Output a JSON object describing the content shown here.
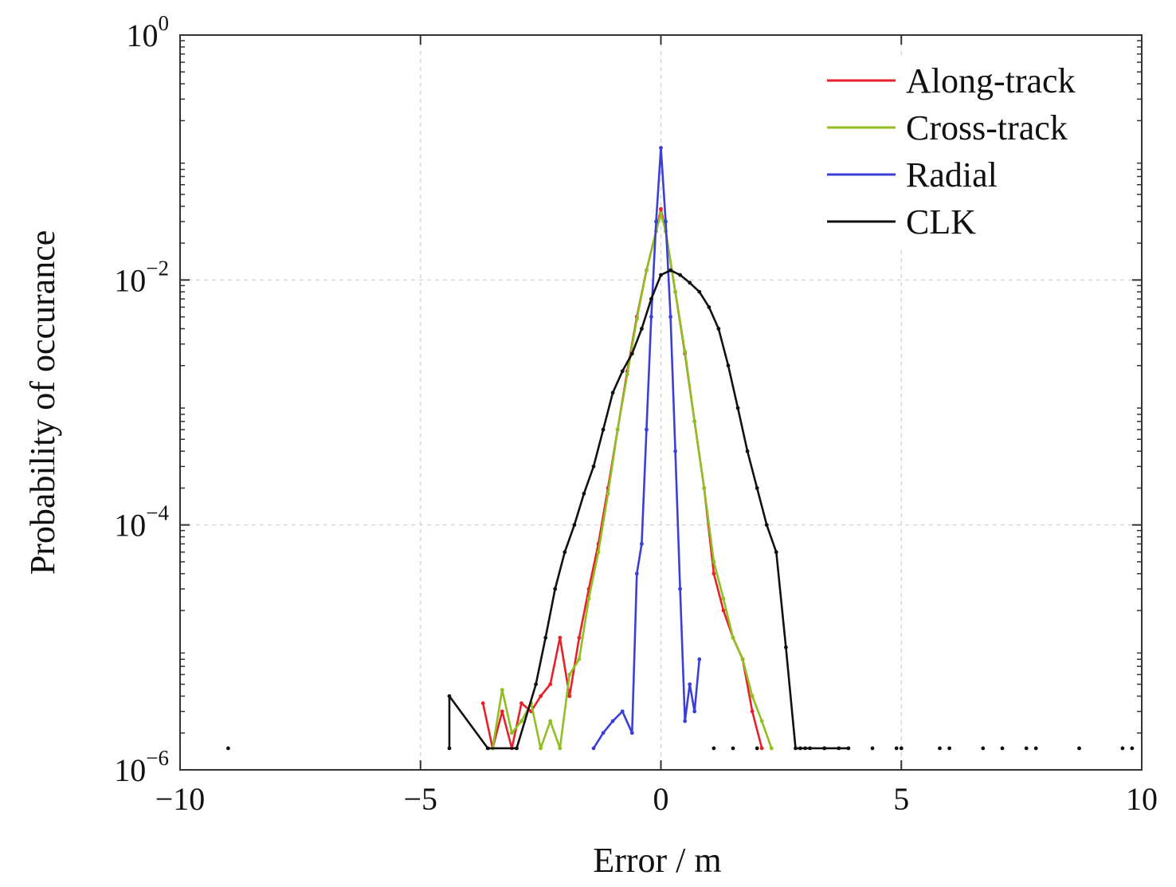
{
  "chart_data": {
    "type": "line",
    "xlabel": "Error / m",
    "ylabel": "Probability of occurance",
    "xlim": [
      -10,
      10
    ],
    "ylim_log10": [
      -6,
      0
    ],
    "yscale": "log",
    "grid": true,
    "legend_position": "top-right",
    "x_ticks": [
      {
        "value": -10,
        "label": "−10"
      },
      {
        "value": -5,
        "label": "−5"
      },
      {
        "value": 0,
        "label": "0"
      },
      {
        "value": 5,
        "label": "5"
      },
      {
        "value": 10,
        "label": "10"
      }
    ],
    "y_ticks": [
      {
        "exp": 0,
        "base": "10",
        "sup": "0"
      },
      {
        "exp": -2,
        "base": "10",
        "sup": "−2"
      },
      {
        "exp": -4,
        "base": "10",
        "sup": "−4"
      },
      {
        "exp": -6,
        "base": "10",
        "sup": "−6"
      }
    ],
    "series": [
      {
        "name": "Along-track",
        "color": "#e8202a",
        "x": [
          -3.7,
          -3.5,
          -3.3,
          -3.1,
          -2.9,
          -2.7,
          -2.5,
          -2.3,
          -2.1,
          -1.9,
          -1.7,
          -1.5,
          -1.3,
          -1.1,
          -0.9,
          -0.7,
          -0.5,
          -0.3,
          -0.1,
          0.0,
          0.1,
          0.3,
          0.5,
          0.7,
          0.9,
          1.1,
          1.3,
          1.5,
          1.7,
          1.9,
          2.1
        ],
        "y": [
          3.5e-06,
          1.5e-06,
          3e-06,
          1.5e-06,
          3.5e-06,
          3e-06,
          4e-06,
          5e-06,
          1.2e-05,
          4e-06,
          1.2e-05,
          3e-05,
          7e-05,
          0.0002,
          0.0006,
          0.0018,
          0.005,
          0.012,
          0.025,
          0.038,
          0.025,
          0.008,
          0.0025,
          0.0007,
          0.0002,
          4e-05,
          2e-05,
          1.2e-05,
          8e-06,
          3e-06,
          1.5e-06
        ]
      },
      {
        "name": "Cross-track",
        "color": "#8fbf20",
        "x": [
          -3.5,
          -3.3,
          -3.1,
          -2.9,
          -2.7,
          -2.5,
          -2.3,
          -2.1,
          -1.9,
          -1.7,
          -1.5,
          -1.3,
          -1.1,
          -0.9,
          -0.7,
          -0.5,
          -0.3,
          -0.1,
          0.0,
          0.1,
          0.3,
          0.5,
          0.7,
          0.9,
          1.1,
          1.3,
          1.5,
          1.7,
          1.9,
          2.1,
          2.3
        ],
        "y": [
          1.5e-06,
          4.5e-06,
          2e-06,
          2.5e-06,
          3.5e-06,
          1.5e-06,
          2.5e-06,
          1.5e-06,
          6e-06,
          8e-06,
          2.5e-05,
          6e-05,
          0.00018,
          0.0006,
          0.0017,
          0.0048,
          0.012,
          0.025,
          0.035,
          0.025,
          0.008,
          0.0026,
          0.0007,
          0.0002,
          5e-05,
          2.5e-05,
          1.2e-05,
          8e-06,
          4e-06,
          2.5e-06,
          1.5e-06
        ]
      },
      {
        "name": "Radial",
        "color": "#3b3fd6",
        "x": [
          -1.4,
          -1.2,
          -1.0,
          -0.8,
          -0.6,
          -0.5,
          -0.4,
          -0.3,
          -0.2,
          -0.1,
          0.0,
          0.1,
          0.2,
          0.3,
          0.4,
          0.5,
          0.6,
          0.7,
          0.8
        ],
        "y": [
          1.5e-06,
          2e-06,
          2.5e-06,
          3e-06,
          2e-06,
          4e-05,
          7e-05,
          0.0006,
          0.005,
          0.03,
          0.12,
          0.03,
          0.005,
          0.0004,
          3e-05,
          2.5e-06,
          5e-06,
          3e-06,
          8e-06
        ]
      },
      {
        "name": "CLK",
        "color": "#111111",
        "x": [
          -4.4,
          -4.4,
          -3.6,
          -3.0,
          -2.6,
          -2.4,
          -2.2,
          -2.0,
          -1.8,
          -1.6,
          -1.4,
          -1.2,
          -1.0,
          -0.8,
          -0.6,
          -0.4,
          -0.2,
          0.0,
          0.2,
          0.4,
          0.6,
          0.8,
          1.0,
          1.2,
          1.4,
          1.6,
          1.8,
          2.0,
          2.2,
          2.4,
          2.6,
          2.8,
          3.0,
          3.4,
          3.9
        ],
        "y": [
          1.5e-06,
          4e-06,
          1.5e-06,
          1.5e-06,
          5e-06,
          1.2e-05,
          3e-05,
          6e-05,
          0.0001,
          0.00018,
          0.0003,
          0.0006,
          0.0012,
          0.0018,
          0.0025,
          0.004,
          0.007,
          0.011,
          0.012,
          0.011,
          0.0095,
          0.008,
          0.006,
          0.004,
          0.002,
          0.0009,
          0.0004,
          0.0002,
          0.0001,
          6e-05,
          1e-05,
          1.5e-06,
          1.5e-06,
          1.5e-06,
          1.5e-06
        ]
      }
    ],
    "clk_isolated_points": {
      "x": [
        -9.0,
        1.1,
        1.5,
        2.0,
        2.9,
        3.1,
        3.4,
        3.7,
        4.4,
        4.9,
        5.0,
        5.8,
        6.0,
        6.7,
        7.1,
        7.6,
        7.8,
        8.7,
        9.6,
        9.8
      ],
      "y": [
        1.5e-06,
        1.5e-06,
        1.5e-06,
        1.5e-06,
        1.5e-06,
        1.5e-06,
        1.5e-06,
        1.5e-06,
        1.5e-06,
        1.5e-06,
        1.5e-06,
        1.5e-06,
        1.5e-06,
        1.5e-06,
        1.5e-06,
        1.5e-06,
        1.5e-06,
        1.5e-06,
        1.5e-06,
        1.5e-06
      ]
    }
  }
}
